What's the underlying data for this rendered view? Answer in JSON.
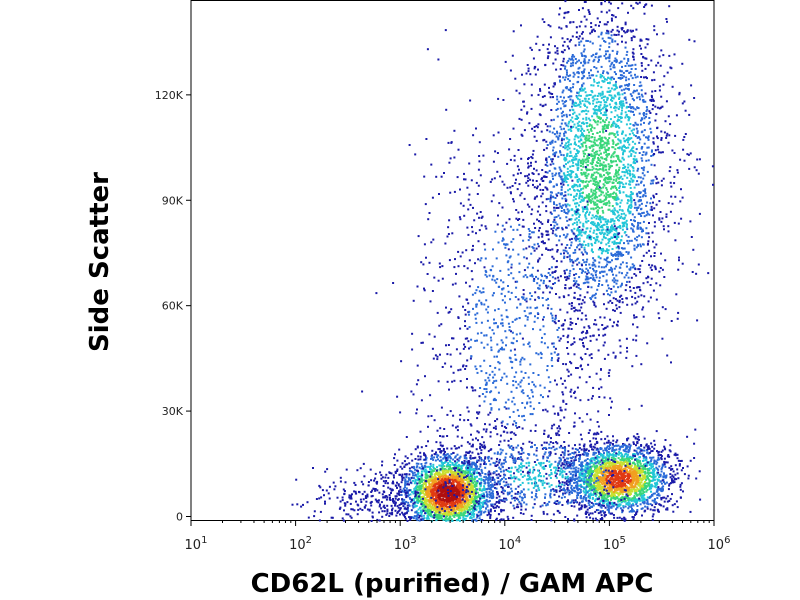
{
  "chart_data": {
    "type": "scatter",
    "title": "",
    "xlabel": "CD62L (purified) / GAM APC",
    "ylabel": "Side Scatter",
    "x_scale": "log",
    "xlim": [
      10,
      1000000
    ],
    "ylim": [
      -1000,
      147000
    ],
    "x_ticks": [
      {
        "value": 10,
        "base": "10",
        "exp": "1"
      },
      {
        "value": 100,
        "base": "10",
        "exp": "2"
      },
      {
        "value": 1000,
        "base": "10",
        "exp": "3"
      },
      {
        "value": 10000,
        "base": "10",
        "exp": "4"
      },
      {
        "value": 100000,
        "base": "10",
        "exp": "5"
      },
      {
        "value": 1000000,
        "base": "10",
        "exp": "6"
      }
    ],
    "y_ticks": [
      {
        "value": 0,
        "label": "0"
      },
      {
        "value": 30000,
        "label": "30K"
      },
      {
        "value": 60000,
        "label": "60K"
      },
      {
        "value": 90000,
        "label": "90K"
      },
      {
        "value": 120000,
        "label": "120K"
      }
    ],
    "populations": [
      {
        "center_x": 2800,
        "center_y": 7000,
        "density": "peak"
      },
      {
        "center_x": 120000,
        "center_y": 11000,
        "density": "high"
      },
      {
        "center_x": 80000,
        "center_y": 105000,
        "density": "medium"
      }
    ],
    "color_scale": [
      "#1a1aa8",
      "#2a6ad8",
      "#22c6d8",
      "#39d67a",
      "#c8e032",
      "#f0a020",
      "#e03a12",
      "#b00f0f"
    ],
    "grid": false,
    "legend": "none"
  }
}
